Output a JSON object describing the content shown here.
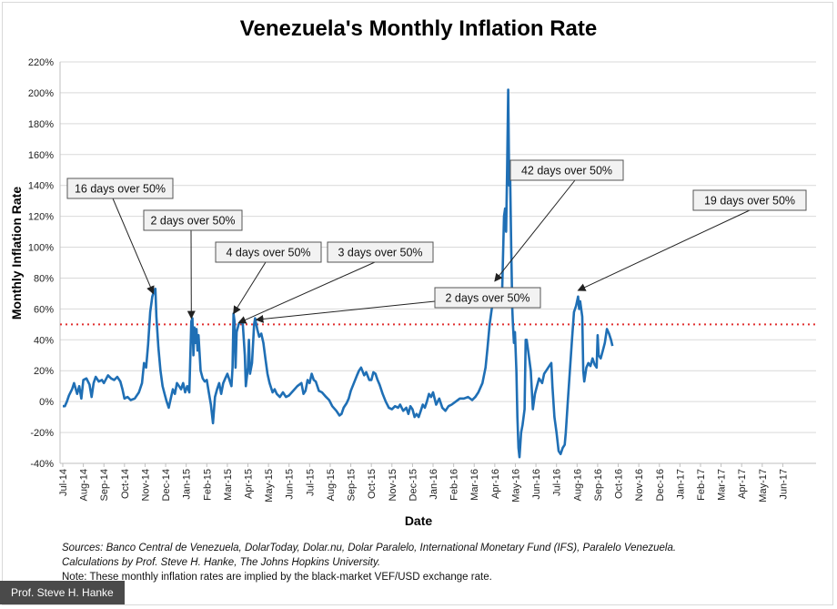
{
  "chart_data": {
    "type": "line",
    "title": "Venezuela's Monthly Inflation Rate",
    "xlabel": "Date",
    "ylabel": "Monthly Inflation Rate",
    "ylim": [
      -40,
      220
    ],
    "ytick_step": 20,
    "ytick_labels": [
      "-40%",
      "-20%",
      "0%",
      "20%",
      "40%",
      "60%",
      "80%",
      "100%",
      "120%",
      "140%",
      "160%",
      "180%",
      "200%",
      "220%"
    ],
    "x_tick_labels": [
      "Jul-14",
      "Aug-14",
      "Sep-14",
      "Oct-14",
      "Nov-14",
      "Dec-14",
      "Jan-15",
      "Feb-15",
      "Mar-15",
      "Apr-15",
      "May-15",
      "Jun-15",
      "Jul-15",
      "Aug-15",
      "Sep-15",
      "Oct-15",
      "Nov-15",
      "Dec-15",
      "Jan-16",
      "Feb-16",
      "Mar-16",
      "Apr-16",
      "May-16",
      "Jun-16",
      "Jul-16",
      "Aug-16",
      "Sep-16",
      "Oct-16",
      "Nov-16",
      "Dec-16",
      "Jan-17",
      "Feb-17",
      "Mar-17",
      "Apr-17",
      "May-17",
      "Jun-17"
    ],
    "threshold": 50,
    "series": [
      {
        "name": "Monthly Inflation Rate",
        "color": "#1f6fb5",
        "points": [
          [
            0,
            -3
          ],
          [
            0.1,
            -3
          ],
          [
            0.2,
            0
          ],
          [
            0.3,
            4
          ],
          [
            0.45,
            8
          ],
          [
            0.55,
            12
          ],
          [
            0.7,
            5
          ],
          [
            0.8,
            10
          ],
          [
            0.9,
            2
          ],
          [
            1.0,
            14
          ],
          [
            1.15,
            15
          ],
          [
            1.3,
            11
          ],
          [
            1.4,
            3
          ],
          [
            1.5,
            12
          ],
          [
            1.6,
            16
          ],
          [
            1.75,
            13
          ],
          [
            1.9,
            14
          ],
          [
            2.0,
            12
          ],
          [
            2.2,
            17
          ],
          [
            2.35,
            15
          ],
          [
            2.5,
            14
          ],
          [
            2.65,
            16
          ],
          [
            2.8,
            13
          ],
          [
            2.9,
            8
          ],
          [
            3.0,
            2
          ],
          [
            3.15,
            3
          ],
          [
            3.3,
            1
          ],
          [
            3.5,
            2
          ],
          [
            3.7,
            6
          ],
          [
            3.85,
            12
          ],
          [
            3.95,
            25
          ],
          [
            4.05,
            22
          ],
          [
            4.15,
            37
          ],
          [
            4.25,
            58
          ],
          [
            4.35,
            68
          ],
          [
            4.45,
            72
          ],
          [
            4.5,
            73
          ],
          [
            4.55,
            55
          ],
          [
            4.65,
            35
          ],
          [
            4.75,
            20
          ],
          [
            4.85,
            10
          ],
          [
            4.95,
            5
          ],
          [
            5.05,
            0
          ],
          [
            5.15,
            -4
          ],
          [
            5.25,
            2
          ],
          [
            5.35,
            8
          ],
          [
            5.45,
            5
          ],
          [
            5.55,
            12
          ],
          [
            5.65,
            10
          ],
          [
            5.75,
            8
          ],
          [
            5.85,
            12
          ],
          [
            5.95,
            6
          ],
          [
            6.05,
            10
          ],
          [
            6.15,
            6
          ],
          [
            6.25,
            52
          ],
          [
            6.3,
            54
          ],
          [
            6.35,
            30
          ],
          [
            6.4,
            48
          ],
          [
            6.45,
            38
          ],
          [
            6.5,
            47
          ],
          [
            6.55,
            33
          ],
          [
            6.6,
            43
          ],
          [
            6.7,
            20
          ],
          [
            6.8,
            15
          ],
          [
            6.9,
            13
          ],
          [
            7.0,
            14
          ],
          [
            7.1,
            6
          ],
          [
            7.2,
            -2
          ],
          [
            7.3,
            -14
          ],
          [
            7.4,
            3
          ],
          [
            7.5,
            8
          ],
          [
            7.6,
            12
          ],
          [
            7.7,
            5
          ],
          [
            7.8,
            12
          ],
          [
            7.9,
            15
          ],
          [
            8.0,
            18
          ],
          [
            8.1,
            14
          ],
          [
            8.2,
            10
          ],
          [
            8.25,
            22
          ],
          [
            8.3,
            57
          ],
          [
            8.35,
            52
          ],
          [
            8.4,
            22
          ],
          [
            8.45,
            45
          ],
          [
            8.55,
            50
          ],
          [
            8.65,
            52
          ],
          [
            8.75,
            50
          ],
          [
            8.85,
            30
          ],
          [
            8.9,
            10
          ],
          [
            9.0,
            22
          ],
          [
            9.05,
            40
          ],
          [
            9.1,
            18
          ],
          [
            9.2,
            25
          ],
          [
            9.3,
            50
          ],
          [
            9.35,
            54
          ],
          [
            9.45,
            47
          ],
          [
            9.55,
            42
          ],
          [
            9.65,
            44
          ],
          [
            9.75,
            38
          ],
          [
            9.85,
            28
          ],
          [
            9.95,
            18
          ],
          [
            10.05,
            12
          ],
          [
            10.2,
            6
          ],
          [
            10.3,
            8
          ],
          [
            10.4,
            5
          ],
          [
            10.55,
            3
          ],
          [
            10.7,
            6
          ],
          [
            10.85,
            3
          ],
          [
            11.0,
            4
          ],
          [
            11.2,
            7
          ],
          [
            11.4,
            10
          ],
          [
            11.6,
            12
          ],
          [
            11.7,
            5
          ],
          [
            11.8,
            7
          ],
          [
            11.9,
            14
          ],
          [
            12.0,
            12
          ],
          [
            12.1,
            18
          ],
          [
            12.2,
            14
          ],
          [
            12.3,
            13
          ],
          [
            12.45,
            7
          ],
          [
            12.6,
            6
          ],
          [
            12.8,
            3
          ],
          [
            12.95,
            1
          ],
          [
            13.1,
            -3
          ],
          [
            13.3,
            -6
          ],
          [
            13.45,
            -9
          ],
          [
            13.55,
            -8
          ],
          [
            13.65,
            -4
          ],
          [
            13.8,
            -1
          ],
          [
            13.9,
            2
          ],
          [
            14.0,
            7
          ],
          [
            14.15,
            12
          ],
          [
            14.3,
            17
          ],
          [
            14.4,
            20
          ],
          [
            14.5,
            22
          ],
          [
            14.65,
            17
          ],
          [
            14.75,
            19
          ],
          [
            14.9,
            14
          ],
          [
            15.0,
            14
          ],
          [
            15.1,
            19
          ],
          [
            15.2,
            18
          ],
          [
            15.3,
            14
          ],
          [
            15.4,
            11
          ],
          [
            15.55,
            5
          ],
          [
            15.7,
            0
          ],
          [
            15.85,
            -4
          ],
          [
            16.0,
            -5
          ],
          [
            16.15,
            -3
          ],
          [
            16.3,
            -4
          ],
          [
            16.4,
            -2
          ],
          [
            16.55,
            -6
          ],
          [
            16.7,
            -4
          ],
          [
            16.8,
            -8
          ],
          [
            16.9,
            -3
          ],
          [
            17.0,
            -5
          ],
          [
            17.1,
            -10
          ],
          [
            17.2,
            -8
          ],
          [
            17.3,
            -10
          ],
          [
            17.4,
            -6
          ],
          [
            17.5,
            -2
          ],
          [
            17.6,
            -4
          ],
          [
            17.7,
            0
          ],
          [
            17.8,
            5
          ],
          [
            17.9,
            3
          ],
          [
            18.0,
            6
          ],
          [
            18.15,
            -2
          ],
          [
            18.3,
            2
          ],
          [
            18.45,
            -4
          ],
          [
            18.6,
            -6
          ],
          [
            18.75,
            -3
          ],
          [
            18.9,
            -2
          ],
          [
            19.1,
            0
          ],
          [
            19.3,
            2
          ],
          [
            19.5,
            2
          ],
          [
            19.7,
            3
          ],
          [
            19.9,
            1
          ],
          [
            20.05,
            3
          ],
          [
            20.2,
            6
          ],
          [
            20.4,
            12
          ],
          [
            20.55,
            22
          ],
          [
            20.65,
            35
          ],
          [
            20.75,
            50
          ],
          [
            20.85,
            60
          ],
          [
            20.95,
            66
          ],
          [
            21.05,
            67
          ],
          [
            21.15,
            65
          ],
          [
            21.25,
            62
          ],
          [
            21.35,
            68
          ],
          [
            21.45,
            120
          ],
          [
            21.5,
            125
          ],
          [
            21.55,
            110
          ],
          [
            21.6,
            150
          ],
          [
            21.65,
            202
          ],
          [
            21.7,
            140
          ],
          [
            21.75,
            143
          ],
          [
            21.8,
            100
          ],
          [
            21.85,
            60
          ],
          [
            21.88,
            50
          ],
          [
            21.93,
            38
          ],
          [
            21.98,
            45
          ],
          [
            22.05,
            20
          ],
          [
            22.1,
            -10
          ],
          [
            22.15,
            -30
          ],
          [
            22.2,
            -36
          ],
          [
            22.28,
            -20
          ],
          [
            22.35,
            -15
          ],
          [
            22.45,
            -5
          ],
          [
            22.5,
            40
          ],
          [
            22.55,
            40
          ],
          [
            22.65,
            30
          ],
          [
            22.75,
            20
          ],
          [
            22.85,
            -5
          ],
          [
            22.95,
            5
          ],
          [
            23.05,
            10
          ],
          [
            23.15,
            15
          ],
          [
            23.3,
            12
          ],
          [
            23.4,
            18
          ],
          [
            23.5,
            20
          ],
          [
            23.6,
            22
          ],
          [
            23.7,
            24
          ],
          [
            23.75,
            25
          ],
          [
            23.8,
            10
          ],
          [
            23.9,
            -10
          ],
          [
            24.0,
            -20
          ],
          [
            24.1,
            -32
          ],
          [
            24.2,
            -34
          ],
          [
            24.3,
            -30
          ],
          [
            24.4,
            -28
          ],
          [
            24.45,
            -20
          ],
          [
            24.55,
            0
          ],
          [
            24.65,
            20
          ],
          [
            24.75,
            40
          ],
          [
            24.85,
            58
          ],
          [
            24.95,
            62
          ],
          [
            25.05,
            68
          ],
          [
            25.1,
            60
          ],
          [
            25.15,
            65
          ],
          [
            25.25,
            55
          ],
          [
            25.3,
            20
          ],
          [
            25.35,
            13
          ],
          [
            25.45,
            22
          ],
          [
            25.55,
            25
          ],
          [
            25.65,
            23
          ],
          [
            25.75,
            28
          ],
          [
            25.85,
            24
          ],
          [
            25.95,
            22
          ],
          [
            26.0,
            43
          ],
          [
            26.05,
            30
          ],
          [
            26.15,
            28
          ],
          [
            26.25,
            33
          ],
          [
            26.35,
            38
          ],
          [
            26.45,
            47
          ],
          [
            26.55,
            44
          ],
          [
            26.65,
            40
          ],
          [
            26.72,
            36
          ]
        ]
      }
    ],
    "annotations": [
      {
        "text": "16 days over 50%",
        "target": [
          4.4,
          70
        ]
      },
      {
        "text": "2 days over 50%",
        "target": [
          6.25,
          54
        ]
      },
      {
        "text": "4 days over 50%",
        "target": [
          8.3,
          57
        ]
      },
      {
        "text": "3 days over 50%",
        "target": [
          8.55,
          51
        ]
      },
      {
        "text": "2 days over 50%",
        "target": [
          9.4,
          53
        ]
      },
      {
        "text": "42 days over 50%",
        "target": [
          21.0,
          78
        ]
      },
      {
        "text": "19 days over 50%",
        "target": [
          25.05,
          72
        ]
      }
    ]
  },
  "footnotes": {
    "sources": "Sources: Banco Central de Venezuela, DolarToday, Dolar.nu, Dolar Paralelo, International Monetary Fund (IFS), Paralelo Venezuela.",
    "calculations": "Calculations by Prof. Steve H. Hanke, The Johns Hopkins University.",
    "note": "Note: These monthly inflation rates are implied by the black-market VEF/USD exchange rate."
  },
  "credit": "Prof. Steve H. Hanke"
}
